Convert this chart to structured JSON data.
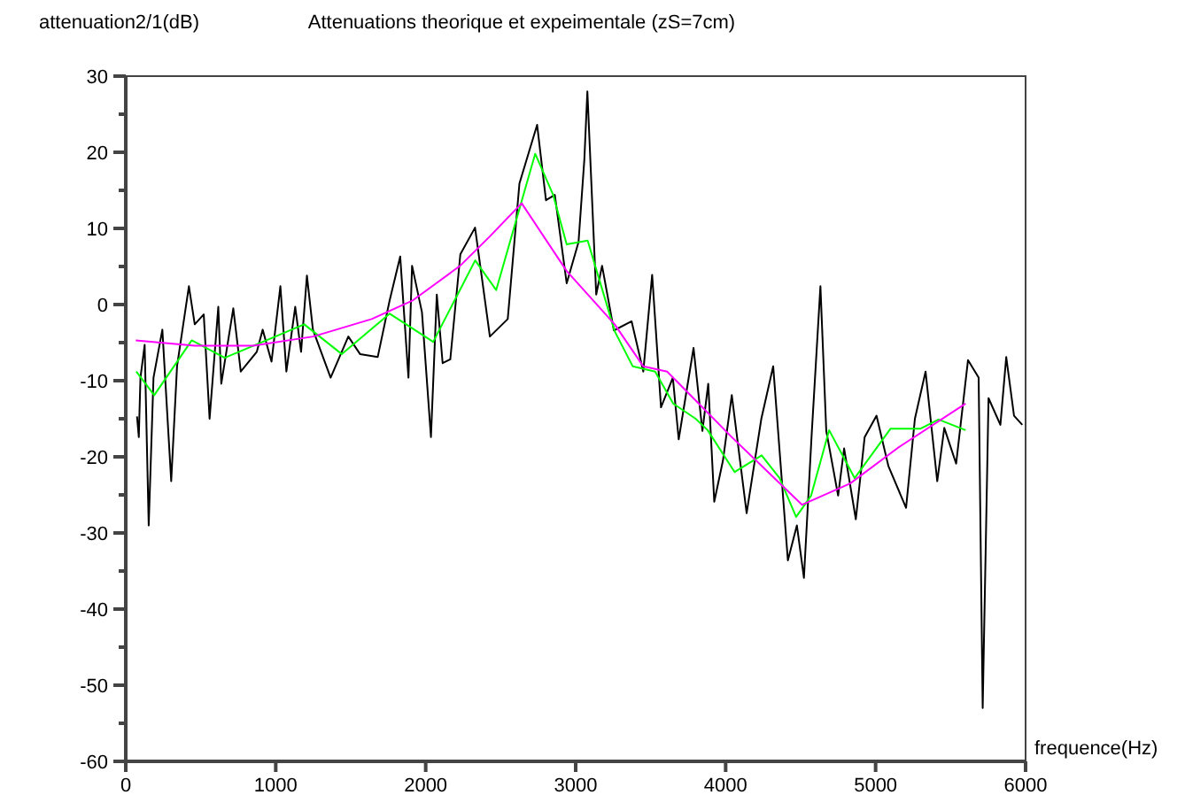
{
  "chart_data": {
    "type": "line",
    "title": "Attenuations theorique et expeimentale (zS=7cm)",
    "ylabel": "attenuation2/1(dB)",
    "xlabel": "frequence(Hz)",
    "xlim": [
      0,
      6000
    ],
    "ylim": [
      -60,
      30
    ],
    "xticks": [
      0,
      1000,
      2000,
      3000,
      4000,
      5000,
      6000
    ],
    "yticks": [
      -60,
      {
        "value": -55,
        "label": null
      },
      -50,
      {
        "value": -45,
        "label": null
      },
      -40,
      {
        "value": -35,
        "label": null
      },
      -30,
      {
        "value": -25,
        "label": null
      },
      -20,
      {
        "value": -15,
        "label": null
      },
      -10,
      {
        "value": -5,
        "label": null
      },
      0,
      {
        "value": 5,
        "label": null
      },
      10,
      {
        "value": 15,
        "label": null
      },
      20,
      {
        "value": 25,
        "label": null
      },
      30
    ],
    "grid": false,
    "line_style": "solid",
    "marker": "none",
    "series": [
      {
        "color": "#000000",
        "x": [
          75,
          87,
          98,
          126,
          153,
          185,
          244,
          303,
          342,
          421,
          460,
          520,
          559,
          617,
          637,
          717,
          767,
          874,
          913,
          972,
          1031,
          1071,
          1130,
          1169,
          1208,
          1248,
          1366,
          1484,
          1562,
          1680,
          1759,
          1830,
          1885,
          1909,
          1975,
          2035,
          2074,
          2113,
          2164,
          2231,
          2329,
          2428,
          2547,
          2625,
          2743,
          2802,
          2861,
          2940,
          3019,
          3058,
          3078,
          3137,
          3176,
          3255,
          3373,
          3451,
          3510,
          3569,
          3648,
          3687,
          3786,
          3845,
          3884,
          3924,
          3982,
          4041,
          4140,
          4238,
          4317,
          4415,
          4475,
          4522,
          4573,
          4632,
          4671,
          4750,
          4790,
          4868,
          4927,
          5006,
          5085,
          5203,
          5262,
          5333,
          5411,
          5458,
          5537,
          5616,
          5687,
          5714,
          5753,
          5832,
          5871,
          5923,
          5978
        ],
        "values": [
          -14.7,
          -17.4,
          -9.6,
          -5.3,
          -29,
          -9.6,
          -3.3,
          -23.2,
          -8.1,
          2.4,
          -2.6,
          -1.3,
          -15,
          -0.3,
          -10.4,
          -0.5,
          -8.8,
          -6.2,
          -3.3,
          -7.5,
          2.4,
          -8.8,
          -0.3,
          -6.2,
          3.8,
          -3.3,
          -9.6,
          -4.2,
          -6.5,
          -6.9,
          0.5,
          6.3,
          -9.6,
          5.1,
          -1,
          -17.4,
          1.3,
          -7.7,
          -7.2,
          6.6,
          10.1,
          -4.2,
          -1.9,
          15.9,
          23.6,
          13.7,
          14.4,
          2.8,
          8.2,
          19.1,
          28,
          1.3,
          5.1,
          -3.4,
          -2.2,
          -8.8,
          3.9,
          -13.5,
          -9.6,
          -17.7,
          -5.7,
          -16.6,
          -10.4,
          -25.9,
          -20.5,
          -11.9,
          -27.4,
          -15,
          -8.1,
          -33.6,
          -29,
          -35.9,
          -17.3,
          2.4,
          -16.6,
          -25.1,
          -18.9,
          -28.2,
          -17.4,
          -14.6,
          -21.2,
          -26.7,
          -15,
          -8.8,
          -23.2,
          -16.2,
          -20.9,
          -7.3,
          -9.6,
          -53,
          -12.3,
          -15.8,
          -6.9,
          -14.6,
          -15.8
        ]
      },
      {
        "color": "#00ff00",
        "x": [
          70,
          190,
          440,
          660,
          780,
          1190,
          1440,
          1760,
          2050,
          2330,
          2470,
          2730,
          2850,
          2940,
          3080,
          3260,
          3380,
          3530,
          3650,
          3800,
          3880,
          4060,
          4240,
          4360,
          4470,
          4570,
          4690,
          4860,
          5100,
          5300,
          5420,
          5600
        ],
        "values": [
          -8.8,
          -11.9,
          -4.7,
          -7,
          -6,
          -2.6,
          -6.5,
          -1.2,
          -4.9,
          5.8,
          1.9,
          19.8,
          14.4,
          7.9,
          8.4,
          -3.5,
          -8.1,
          -8.8,
          -13,
          -15,
          -16.5,
          -22,
          -19.8,
          -22.8,
          -27.9,
          -25.1,
          -16.5,
          -22.8,
          -16.3,
          -16.3,
          -15.1,
          -16.5
        ]
      },
      {
        "color": "#ff00ff",
        "x": [
          67,
          460,
          850,
          1250,
          1640,
          1910,
          2230,
          2430,
          2640,
          2940,
          3260,
          3450,
          3610,
          4040,
          4510,
          4830,
          5150,
          5600
        ],
        "values": [
          -4.7,
          -5.4,
          -5.4,
          -4.2,
          -1.9,
          0.5,
          5.1,
          9,
          13.3,
          4.4,
          -2.6,
          -8.1,
          -8.8,
          -17.4,
          -26.3,
          -23.5,
          -18.8,
          -13
        ]
      }
    ]
  }
}
